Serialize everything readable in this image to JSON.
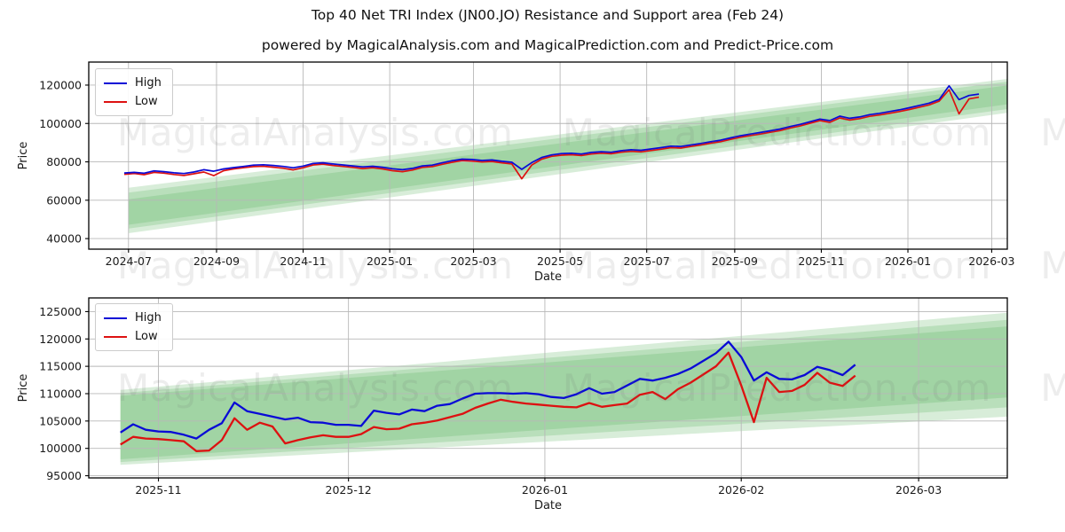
{
  "chart_data": {
    "title": "Top 40 Net TRI Index (JN00.JO) Resistance and Support area (Feb 24)",
    "subtitle": "powered by MagicalAnalysis.com and MagicalPrediction.com and Predict-Price.com",
    "watermark_row": "MagicalAnalysis.com    MagicalPrediction.com    Ma",
    "colors": {
      "high": "#0a0ad6",
      "low": "#dd1111",
      "band": "#4caf50",
      "grid": "#b8b8b8",
      "spine": "#000000",
      "tick_text": "#1a1a1a"
    },
    "charts": [
      {
        "type": "line",
        "name": "full-history",
        "xlabel": "Date",
        "ylabel": "Price",
        "legend": [
          "High",
          "Low"
        ],
        "legend_position": "upper left",
        "grid": true,
        "xdomain": [
          "2024-06-03",
          "2026-03-12"
        ],
        "ydomain": [
          34500,
          132000
        ],
        "yticks": [
          40000,
          60000,
          80000,
          100000,
          120000
        ],
        "xticks": [
          {
            "date": "2024-07-01",
            "label": "2024-07"
          },
          {
            "date": "2024-09-01",
            "label": "2024-09"
          },
          {
            "date": "2024-11-01",
            "label": "2024-11"
          },
          {
            "date": "2025-01-01",
            "label": "2025-01"
          },
          {
            "date": "2025-03-01",
            "label": "2025-03"
          },
          {
            "date": "2025-05-01",
            "label": "2025-05"
          },
          {
            "date": "2025-07-01",
            "label": "2025-07"
          },
          {
            "date": "2025-09-01",
            "label": "2025-09"
          },
          {
            "date": "2025-11-01",
            "label": "2025-11"
          },
          {
            "date": "2026-01-01",
            "label": "2026-01"
          },
          {
            "date": "2026-03-01",
            "label": "2026-03"
          }
        ],
        "bands": [
          {
            "x_start": "2024-07-01",
            "x_end": "2026-03-12",
            "top_start": 66500,
            "top_end": 123200,
            "bottom_start": 42800,
            "bottom_end": 105500
          },
          {
            "x_start": "2024-07-01",
            "x_end": "2026-03-12",
            "top_start": 64000,
            "top_end": 121800,
            "bottom_start": 45200,
            "bottom_end": 107500
          },
          {
            "x_start": "2024-07-01",
            "x_end": "2026-03-12",
            "top_start": 60500,
            "top_end": 119800,
            "bottom_start": 47200,
            "bottom_end": 110000
          }
        ],
        "series": {
          "start": "2024-06-28",
          "step_days": 7,
          "high": [
            74200,
            74500,
            74100,
            75300,
            74900,
            74300,
            73900,
            74700,
            75900,
            75100,
            76300,
            77000,
            77600,
            78300,
            78500,
            78100,
            77600,
            76900,
            77800,
            79200,
            79500,
            78900,
            78400,
            77900,
            77400,
            77700,
            77200,
            76400,
            75900,
            76600,
            77900,
            78300,
            79500,
            80600,
            81400,
            81200,
            80700,
            81000,
            80300,
            79800,
            76100,
            79600,
            82300,
            83600,
            84300,
            84500,
            84100,
            84900,
            85300,
            85000,
            85800,
            86300,
            86000,
            86700,
            87400,
            88200,
            88000,
            88800,
            89600,
            90500,
            91300,
            92500,
            93600,
            94500,
            95300,
            96200,
            97100,
            98400,
            99500,
            100900,
            102300,
            101500,
            103800,
            102700,
            103400,
            104600,
            105300,
            106200,
            107100,
            108200,
            109400,
            110600,
            112500,
            119600,
            112400,
            114600,
            115300
          ],
          "low": [
            73500,
            73900,
            73300,
            74500,
            74100,
            73400,
            72900,
            73800,
            74700,
            72800,
            75400,
            76300,
            76900,
            77500,
            77700,
            77200,
            76700,
            75800,
            76900,
            78400,
            78800,
            78100,
            77600,
            77100,
            76500,
            76900,
            76300,
            75400,
            74900,
            75700,
            77100,
            77500,
            78700,
            79800,
            80700,
            80400,
            79900,
            80200,
            79500,
            78900,
            71200,
            78300,
            81400,
            82900,
            83500,
            83700,
            83300,
            84100,
            84500,
            84200,
            85000,
            85500,
            85200,
            85900,
            86600,
            87400,
            87200,
            88000,
            88800,
            89700,
            90500,
            91700,
            92800,
            93700,
            94500,
            95400,
            96300,
            97600,
            98700,
            100100,
            101500,
            100600,
            102900,
            101800,
            102500,
            103700,
            104400,
            105300,
            106200,
            107300,
            108500,
            109700,
            111600,
            117600,
            105000,
            112800,
            113700
          ]
        }
      },
      {
        "type": "line",
        "name": "recent-zoom",
        "xlabel": "Date",
        "ylabel": "Price",
        "legend": [
          "High",
          "Low"
        ],
        "legend_position": "upper left",
        "grid": true,
        "xdomain": [
          "2025-10-21",
          "2026-03-15"
        ],
        "ydomain": [
          94600,
          127500
        ],
        "yticks": [
          95000,
          100000,
          105000,
          110000,
          115000,
          120000,
          125000
        ],
        "xticks": [
          {
            "date": "2025-11-01",
            "label": "2025-11"
          },
          {
            "date": "2025-12-01",
            "label": "2025-12"
          },
          {
            "date": "2026-01-01",
            "label": "2026-01"
          },
          {
            "date": "2026-02-01",
            "label": "2026-02"
          },
          {
            "date": "2026-03-01",
            "label": "2026-03"
          }
        ],
        "bands": [
          {
            "x_start": "2025-10-26",
            "x_end": "2026-03-15",
            "top_start": 110700,
            "top_end": 124800,
            "bottom_start": 97000,
            "bottom_end": 105800
          },
          {
            "x_start": "2025-10-26",
            "x_end": "2026-03-15",
            "top_start": 110100,
            "top_end": 123500,
            "bottom_start": 97500,
            "bottom_end": 107500
          },
          {
            "x_start": "2025-10-26",
            "x_end": "2026-03-15",
            "top_start": 109600,
            "top_end": 122300,
            "bottom_start": 98000,
            "bottom_end": 109300
          }
        ],
        "series": {
          "start": "2025-10-26",
          "step_days": 2,
          "high": [
            102900,
            104400,
            103400,
            103100,
            103000,
            102500,
            101800,
            103400,
            104600,
            108400,
            106800,
            106300,
            105800,
            105300,
            105600,
            104800,
            104700,
            104300,
            104300,
            104100,
            106900,
            106500,
            106200,
            107100,
            106800,
            107800,
            108100,
            109100,
            110000,
            110100,
            110100,
            110000,
            110100,
            109900,
            109400,
            109200,
            109900,
            111000,
            110000,
            110300,
            111500,
            112700,
            112400,
            112900,
            113600,
            114600,
            116000,
            117400,
            119500,
            116700,
            112400,
            113900,
            112700,
            112600,
            113400,
            114900,
            114300,
            113400,
            115300
          ],
          "low": [
            100700,
            102100,
            101800,
            101700,
            101500,
            101300,
            99500,
            99600,
            101500,
            105500,
            103400,
            104700,
            104000,
            100900,
            101500,
            102000,
            102400,
            102100,
            102100,
            102600,
            103900,
            103500,
            103600,
            104400,
            104700,
            105100,
            105700,
            106300,
            107400,
            108200,
            108900,
            108500,
            108200,
            108000,
            107800,
            107600,
            107500,
            108300,
            107600,
            107900,
            108200,
            109800,
            110300,
            109000,
            110800,
            112000,
            113500,
            115000,
            117500,
            111500,
            104800,
            112900,
            110300,
            110500,
            111600,
            113800,
            112000,
            111400,
            113300
          ]
        }
      }
    ]
  }
}
